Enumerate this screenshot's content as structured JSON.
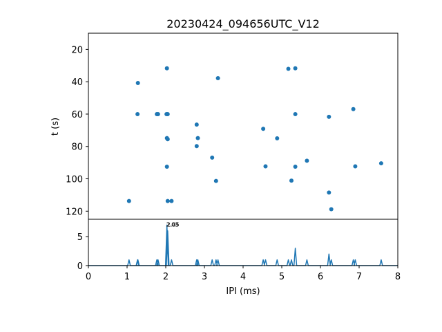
{
  "chart_data": [
    {
      "type": "scatter",
      "title": "20230424_094656UTC_V12",
      "xlabel": "",
      "ylabel": "t (s)",
      "xlim": [
        0,
        8
      ],
      "ylim": [
        125,
        10
      ],
      "y_inverted": true,
      "yticks": [
        20,
        40,
        60,
        80,
        100,
        120
      ],
      "grid": false,
      "marker_color": "#1f77b4",
      "points": [
        {
          "x": 1.05,
          "y": 113.7
        },
        {
          "x": 1.28,
          "y": 40.8
        },
        {
          "x": 1.27,
          "y": 60.0
        },
        {
          "x": 1.77,
          "y": 60.0
        },
        {
          "x": 1.8,
          "y": 60.0
        },
        {
          "x": 2.03,
          "y": 31.7
        },
        {
          "x": 2.02,
          "y": 60.0
        },
        {
          "x": 2.05,
          "y": 60.0
        },
        {
          "x": 2.03,
          "y": 74.8
        },
        {
          "x": 2.05,
          "y": 75.5
        },
        {
          "x": 2.03,
          "y": 92.5
        },
        {
          "x": 2.05,
          "y": 113.7
        },
        {
          "x": 2.15,
          "y": 113.7
        },
        {
          "x": 2.8,
          "y": 66.5
        },
        {
          "x": 2.83,
          "y": 74.8
        },
        {
          "x": 2.8,
          "y": 79.8
        },
        {
          "x": 3.2,
          "y": 86.9
        },
        {
          "x": 3.3,
          "y": 101.3
        },
        {
          "x": 3.35,
          "y": 37.8
        },
        {
          "x": 4.52,
          "y": 69.1
        },
        {
          "x": 4.58,
          "y": 92.3
        },
        {
          "x": 4.88,
          "y": 75.0
        },
        {
          "x": 5.17,
          "y": 32.0
        },
        {
          "x": 5.25,
          "y": 101.1
        },
        {
          "x": 5.35,
          "y": 31.7
        },
        {
          "x": 5.35,
          "y": 60.0
        },
        {
          "x": 5.35,
          "y": 92.5
        },
        {
          "x": 5.65,
          "y": 88.8
        },
        {
          "x": 6.22,
          "y": 61.7
        },
        {
          "x": 6.22,
          "y": 108.5
        },
        {
          "x": 6.28,
          "y": 118.8
        },
        {
          "x": 6.85,
          "y": 56.9
        },
        {
          "x": 6.9,
          "y": 92.3
        },
        {
          "x": 7.57,
          "y": 90.4
        }
      ]
    },
    {
      "type": "line",
      "xlabel": "IPI (ms)",
      "ylabel": "",
      "xlim": [
        0,
        8
      ],
      "ylim": [
        0,
        8
      ],
      "xticks": [
        0,
        1,
        2,
        3,
        4,
        5,
        6,
        7,
        8
      ],
      "yticks": [
        0,
        5
      ],
      "grid": false,
      "line_color": "#1f77b4",
      "peaks": [
        {
          "x": 1.05,
          "y": 1
        },
        {
          "x": 1.27,
          "y": 1
        },
        {
          "x": 1.28,
          "y": 1
        },
        {
          "x": 1.77,
          "y": 1
        },
        {
          "x": 1.8,
          "y": 1
        },
        {
          "x": 2.03,
          "y": 7
        },
        {
          "x": 2.05,
          "y": 6
        },
        {
          "x": 2.15,
          "y": 1
        },
        {
          "x": 2.8,
          "y": 1
        },
        {
          "x": 2.83,
          "y": 1
        },
        {
          "x": 3.2,
          "y": 1
        },
        {
          "x": 3.3,
          "y": 1
        },
        {
          "x": 3.35,
          "y": 1
        },
        {
          "x": 4.52,
          "y": 1
        },
        {
          "x": 4.58,
          "y": 1
        },
        {
          "x": 4.88,
          "y": 1
        },
        {
          "x": 5.17,
          "y": 1
        },
        {
          "x": 5.25,
          "y": 1
        },
        {
          "x": 5.35,
          "y": 3
        },
        {
          "x": 5.65,
          "y": 1
        },
        {
          "x": 6.22,
          "y": 2
        },
        {
          "x": 6.28,
          "y": 1
        },
        {
          "x": 6.85,
          "y": 1
        },
        {
          "x": 6.9,
          "y": 1
        },
        {
          "x": 7.57,
          "y": 1
        }
      ],
      "annotations": [
        {
          "text": "2.03",
          "x": 2.03,
          "y": 7
        },
        {
          "text": "2.05",
          "x": 2.05,
          "y": 7
        }
      ]
    }
  ]
}
